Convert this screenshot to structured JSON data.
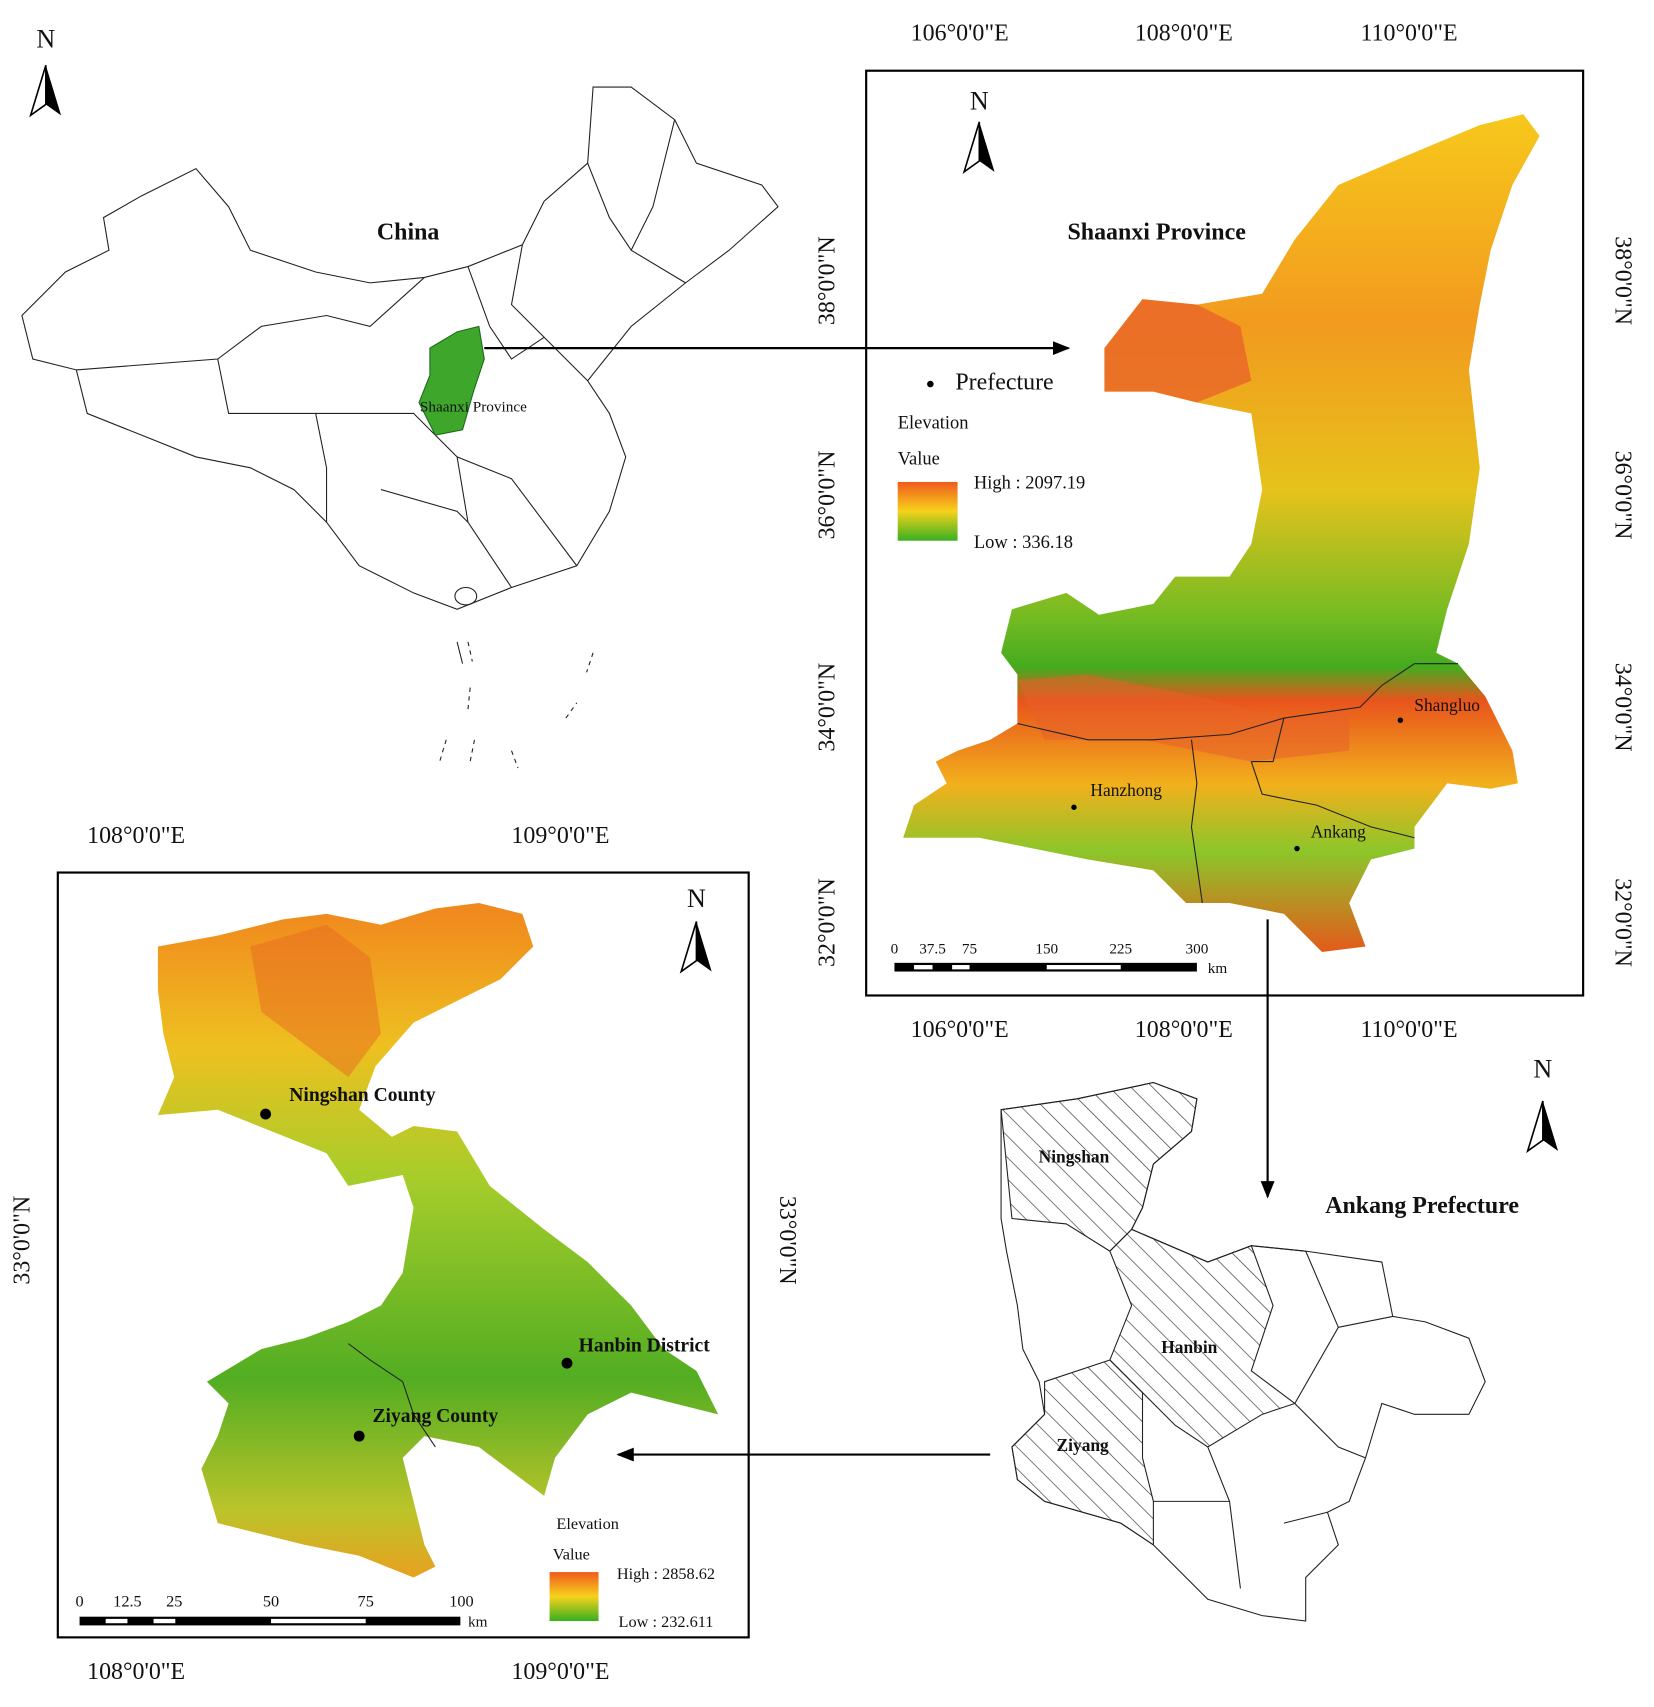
{
  "china_map": {
    "north": "N",
    "title": "China",
    "highlight_label": "Shaanxi Province"
  },
  "shaanxi_map": {
    "north": "N",
    "title": "Shaanxi Province",
    "longitudes": [
      "106°0'0\"E",
      "108°0'0\"E",
      "110°0'0\"E"
    ],
    "latitudes": [
      "38°0'0\"N",
      "36°0'0\"N",
      "34°0'0\"N",
      "32°0'0\"N"
    ],
    "legend": {
      "point": "Prefecture",
      "heading": "Elevation",
      "subheading": "Value",
      "high": "High : 2097.19",
      "low": "Low : 336.18"
    },
    "scale": {
      "ticks": [
        "0",
        "37.5",
        "75",
        "150",
        "225",
        "300"
      ],
      "unit": "km"
    },
    "cities": [
      "Shangluo",
      "Hanzhong",
      "Ankang"
    ]
  },
  "ankang_map": {
    "north": "N",
    "title": "Ankang Prefecture",
    "counties": [
      "Ningshan",
      "Hanbin",
      "Ziyang"
    ]
  },
  "study_area_map": {
    "north": "N",
    "longitudes": [
      "108°0'0\"E",
      "109°0'0\"E"
    ],
    "latitudes": [
      "33°0'0\"N"
    ],
    "places": [
      "Ningshan County",
      "Hanbin District",
      "Ziyang County"
    ],
    "legend": {
      "heading": "Elevation",
      "subheading": "Value",
      "high": "High : 2858.62",
      "low": "Low : 232.611"
    },
    "scale": {
      "ticks": [
        "0",
        "12.5",
        "25",
        "50",
        "75",
        "100"
      ],
      "unit": "km"
    }
  }
}
